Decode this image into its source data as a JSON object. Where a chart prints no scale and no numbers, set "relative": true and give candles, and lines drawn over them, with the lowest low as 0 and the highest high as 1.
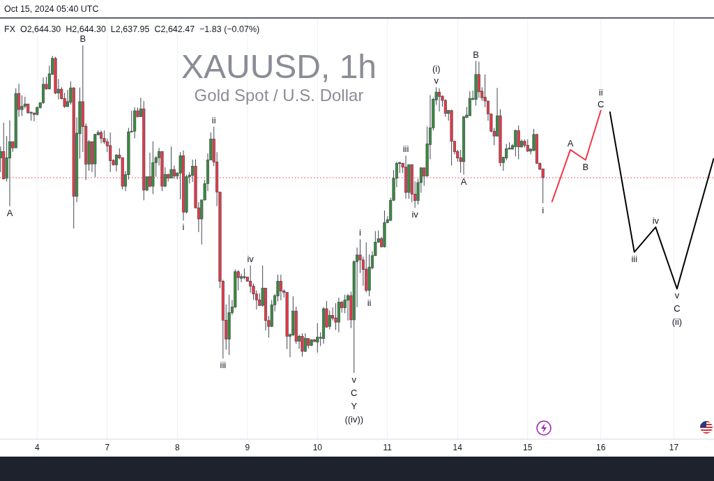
{
  "chart_data": {
    "type": "candlestick",
    "title": "XAUUSD, 1h",
    "subtitle": "Gold Spot / U.S. Dollar",
    "relative": true,
    "categories": [
      null,
      null,
      null,
      null,
      null,
      null,
      null,
      null,
      null,
      null,
      null,
      null,
      "4",
      null,
      null,
      null,
      null,
      null,
      null,
      null,
      null,
      null,
      null,
      null,
      null,
      null,
      null,
      null,
      null,
      null,
      null,
      null,
      null,
      null,
      null,
      "7",
      null,
      null,
      null,
      null,
      null,
      null,
      null,
      null,
      null,
      null,
      null,
      null,
      null,
      null,
      null,
      null,
      null,
      null,
      null,
      null,
      null,
      null,
      "8",
      null,
      null,
      null,
      null,
      null,
      null,
      null,
      null,
      null,
      null,
      null,
      null,
      null,
      null,
      null,
      null,
      null,
      null,
      null,
      null,
      null,
      null,
      "9",
      null,
      null,
      null,
      null,
      null,
      null,
      null,
      null,
      null,
      null,
      null,
      null,
      null,
      null,
      null,
      null,
      null,
      null,
      null,
      null,
      null,
      null,
      "10",
      null,
      null,
      null,
      null,
      null,
      null,
      null,
      null,
      null,
      null,
      null,
      null,
      null,
      null,
      null,
      null,
      null,
      null,
      null,
      null,
      null,
      null,
      "11",
      null,
      null,
      null,
      null,
      null,
      null,
      null,
      null,
      null,
      null,
      null,
      null,
      null,
      null,
      null,
      null,
      null,
      null,
      null,
      null,
      null,
      null,
      "14",
      null,
      null,
      null,
      null,
      null,
      null,
      null,
      null,
      null,
      null,
      null,
      null,
      null,
      null,
      null,
      null,
      null,
      null,
      null,
      null,
      null,
      null,
      "15",
      null,
      null,
      null,
      null,
      null,
      null,
      null,
      null,
      null,
      null,
      null,
      null,
      null,
      null,
      null,
      null,
      null,
      null,
      null,
      null,
      null,
      null,
      null,
      "16",
      null,
      null,
      null,
      null,
      null,
      null,
      null,
      null,
      null,
      null,
      null,
      null,
      null,
      null,
      null,
      null,
      null,
      null,
      null,
      null,
      null,
      null,
      null,
      "17",
      null,
      null,
      null,
      null,
      null,
      null,
      null,
      null,
      null,
      null,
      null,
      null,
      null
    ],
    "ohlc": [
      [
        0.656,
        0.691,
        0.613,
        0.676
      ],
      [
        0.676,
        0.764,
        0.591,
        0.592
      ],
      [
        0.594,
        0.723,
        0.584,
        0.657
      ],
      [
        0.656,
        0.771,
        0.509,
        0.706
      ],
      [
        0.706,
        0.706,
        0.675,
        0.687
      ],
      [
        0.687,
        0.869,
        0.687,
        0.853
      ],
      [
        0.853,
        0.883,
        0.782,
        0.804
      ],
      [
        0.804,
        0.847,
        0.784,
        0.814
      ],
      [
        0.814,
        0.843,
        0.807,
        0.821
      ],
      [
        0.821,
        0.821,
        0.791,
        0.794
      ],
      [
        0.793,
        0.796,
        0.77,
        0.796
      ],
      [
        0.793,
        0.796,
        0.768,
        0.789
      ],
      [
        0.789,
        0.814,
        0.786,
        0.81
      ],
      [
        0.81,
        0.826,
        0.807,
        0.825
      ],
      [
        0.825,
        0.902,
        0.821,
        0.881
      ],
      [
        0.881,
        0.904,
        0.864,
        0.867
      ],
      [
        0.867,
        0.938,
        0.865,
        0.913
      ],
      [
        0.911,
        0.968,
        0.911,
        0.96
      ],
      [
        0.96,
        0.965,
        0.851,
        0.854
      ],
      [
        0.854,
        0.897,
        0.835,
        0.866
      ],
      [
        0.866,
        0.872,
        0.835,
        0.837
      ],
      [
        0.838,
        0.855,
        0.809,
        0.813
      ],
      [
        0.813,
        0.864,
        0.812,
        0.828
      ],
      [
        0.826,
        0.89,
        0.819,
        0.87
      ],
      [
        0.87,
        0.872,
        0.441,
        0.539
      ],
      [
        0.539,
        0.78,
        0.521,
        0.732
      ],
      [
        0.73,
        0.871,
        0.654,
        0.828
      ],
      [
        0.828,
        1.0,
        0.674,
        0.752
      ],
      [
        0.753,
        0.762,
        0.589,
        0.637
      ],
      [
        0.637,
        0.711,
        0.617,
        0.706
      ],
      [
        0.706,
        0.706,
        0.613,
        0.638
      ],
      [
        0.638,
        0.73,
        0.598,
        0.728
      ],
      [
        0.727,
        0.741,
        0.725,
        0.734
      ],
      [
        0.734,
        0.74,
        0.701,
        0.716
      ],
      [
        0.716,
        0.74,
        0.699,
        0.705
      ],
      [
        0.706,
        0.715,
        0.674,
        0.693
      ],
      [
        0.694,
        0.734,
        0.613,
        0.648
      ],
      [
        0.649,
        0.652,
        0.633,
        0.635
      ],
      [
        0.635,
        0.668,
        0.615,
        0.665
      ],
      [
        0.665,
        0.686,
        0.652,
        0.656
      ],
      [
        0.657,
        0.658,
        0.56,
        0.57
      ],
      [
        0.57,
        0.616,
        0.555,
        0.605
      ],
      [
        0.605,
        0.748,
        0.59,
        0.736
      ],
      [
        0.735,
        0.8,
        0.734,
        0.738
      ],
      [
        0.738,
        0.811,
        0.716,
        0.8
      ],
      [
        0.8,
        0.81,
        0.78,
        0.782
      ],
      [
        0.782,
        0.84,
        0.782,
        0.806
      ],
      [
        0.806,
        0.83,
        0.527,
        0.558
      ],
      [
        0.558,
        0.599,
        0.555,
        0.599
      ],
      [
        0.599,
        0.672,
        0.566,
        0.57
      ],
      [
        0.57,
        0.707,
        0.546,
        0.642
      ],
      [
        0.642,
        0.662,
        0.599,
        0.657
      ],
      [
        0.657,
        0.687,
        0.633,
        0.676
      ],
      [
        0.676,
        0.676,
        0.555,
        0.57
      ],
      [
        0.57,
        0.628,
        0.567,
        0.606
      ],
      [
        0.606,
        0.608,
        0.584,
        0.595
      ],
      [
        0.595,
        0.691,
        0.594,
        0.621
      ],
      [
        0.621,
        0.633,
        0.592,
        0.601
      ],
      [
        0.601,
        0.613,
        0.591,
        0.61
      ],
      [
        0.61,
        0.674,
        0.53,
        0.663
      ],
      [
        0.663,
        0.679,
        0.465,
        0.491
      ],
      [
        0.491,
        0.605,
        0.487,
        0.599
      ],
      [
        0.599,
        0.613,
        0.578,
        0.604
      ],
      [
        0.603,
        0.651,
        0.583,
        0.631
      ],
      [
        0.631,
        0.652,
        0.502,
        0.504
      ],
      [
        0.504,
        0.521,
        0.43,
        0.47
      ],
      [
        0.47,
        0.528,
        0.392,
        0.528
      ],
      [
        0.528,
        0.589,
        0.526,
        0.578
      ],
      [
        0.578,
        0.67,
        0.555,
        0.65
      ],
      [
        0.65,
        0.734,
        0.649,
        0.714
      ],
      [
        0.714,
        0.752,
        0.631,
        0.644
      ],
      [
        0.644,
        0.674,
        0.509,
        0.552
      ],
      [
        0.552,
        0.552,
        0.259,
        0.28
      ],
      [
        0.28,
        0.284,
        0.044,
        0.161
      ],
      [
        0.161,
        0.209,
        0.071,
        0.103
      ],
      [
        0.103,
        0.238,
        0.055,
        0.184
      ],
      [
        0.184,
        0.223,
        0.177,
        0.201
      ],
      [
        0.201,
        0.316,
        0.199,
        0.309
      ],
      [
        0.309,
        0.314,
        0.252,
        0.291
      ],
      [
        0.289,
        0.303,
        0.277,
        0.294
      ],
      [
        0.291,
        0.319,
        0.286,
        0.294
      ],
      [
        0.293,
        0.293,
        0.279,
        0.28
      ],
      [
        0.28,
        0.328,
        0.245,
        0.265
      ],
      [
        0.265,
        0.273,
        0.223,
        0.241
      ],
      [
        0.241,
        0.252,
        0.194,
        0.223
      ],
      [
        0.223,
        0.243,
        0.204,
        0.206
      ],
      [
        0.206,
        0.328,
        0.202,
        0.259
      ],
      [
        0.259,
        0.259,
        0.13,
        0.16
      ],
      [
        0.16,
        0.174,
        0.108,
        0.142
      ],
      [
        0.142,
        0.223,
        0.14,
        0.208
      ],
      [
        0.208,
        0.241,
        0.188,
        0.236
      ],
      [
        0.235,
        0.3,
        0.218,
        0.28
      ],
      [
        0.28,
        0.3,
        0.222,
        0.25
      ],
      [
        0.25,
        0.255,
        0.23,
        0.246
      ],
      [
        0.246,
        0.246,
        0.073,
        0.112
      ],
      [
        0.112,
        0.121,
        0.048,
        0.117
      ],
      [
        0.116,
        0.234,
        0.113,
        0.189
      ],
      [
        0.189,
        0.202,
        0.089,
        0.097
      ],
      [
        0.097,
        0.117,
        0.074,
        0.112
      ],
      [
        0.112,
        0.121,
        0.05,
        0.066
      ],
      [
        0.066,
        0.121,
        0.064,
        0.106
      ],
      [
        0.105,
        0.106,
        0.074,
        0.084
      ],
      [
        0.084,
        0.103,
        0.082,
        0.101
      ],
      [
        0.101,
        0.104,
        0.094,
        0.096
      ],
      [
        0.094,
        0.152,
        0.062,
        0.109
      ],
      [
        0.106,
        0.124,
        0.082,
        0.109
      ],
      [
        0.105,
        0.201,
        0.089,
        0.196
      ],
      [
        0.196,
        0.22,
        0.138,
        0.14
      ],
      [
        0.142,
        0.191,
        0.133,
        0.176
      ],
      [
        0.176,
        0.2,
        0.16,
        0.167
      ],
      [
        0.168,
        0.213,
        0.131,
        0.155
      ],
      [
        0.155,
        0.23,
        0.124,
        0.216
      ],
      [
        0.216,
        0.22,
        0.184,
        0.199
      ],
      [
        0.199,
        0.239,
        0.182,
        0.223
      ],
      [
        0.222,
        0.241,
        0.16,
        0.236
      ],
      [
        0.236,
        0.248,
        0.137,
        0.162
      ],
      [
        0.162,
        0.344,
        0,
        0.34
      ],
      [
        0.34,
        0.383,
        0.201,
        0.36
      ],
      [
        0.36,
        0.408,
        0.305,
        0.345
      ],
      [
        0.345,
        0.355,
        0.266,
        0.316
      ],
      [
        0.317,
        0.399,
        0.246,
        0.252
      ],
      [
        0.252,
        0.362,
        0.234,
        0.323
      ],
      [
        0.321,
        0.371,
        0.316,
        0.358
      ],
      [
        0.358,
        0.433,
        0.357,
        0.399
      ],
      [
        0.399,
        0.435,
        0.397,
        0.41
      ],
      [
        0.41,
        0.415,
        0.383,
        0.385
      ],
      [
        0.385,
        0.496,
        0.383,
        0.459
      ],
      [
        0.459,
        0.479,
        0.457,
        0.468
      ],
      [
        0.466,
        0.535,
        0.463,
        0.527
      ],
      [
        0.527,
        0.619,
        0.525,
        0.594
      ],
      [
        0.594,
        0.645,
        0.567,
        0.64
      ],
      [
        0.639,
        0.645,
        0.61,
        0.642
      ],
      [
        0.64,
        0.642,
        0.61,
        0.628
      ],
      [
        0.628,
        0.663,
        0.532,
        0.551
      ],
      [
        0.551,
        0.636,
        0.532,
        0.636
      ],
      [
        0.636,
        0.636,
        0.521,
        0.546
      ],
      [
        0.546,
        0.585,
        0.504,
        0.526
      ],
      [
        0.526,
        0.592,
        0.514,
        0.581
      ],
      [
        0.581,
        0.628,
        0.55,
        0.626
      ],
      [
        0.626,
        0.626,
        0.571,
        0.601
      ],
      [
        0.601,
        0.752,
        0.599,
        0.699
      ],
      [
        0.697,
        0.848,
        0.652,
        0.748
      ],
      [
        0.748,
        0.84,
        0.74,
        0.835
      ],
      [
        0.833,
        0.872,
        0.818,
        0.857
      ],
      [
        0.857,
        0.869,
        0.798,
        0.844
      ],
      [
        0.845,
        0.846,
        0.813,
        0.832
      ],
      [
        0.832,
        0.835,
        0.782,
        0.792
      ],
      [
        0.792,
        0.803,
        0.77,
        0.801
      ],
      [
        0.801,
        0.803,
        0.633,
        0.707
      ],
      [
        0.707,
        0.709,
        0.667,
        0.675
      ],
      [
        0.676,
        0.681,
        0.645,
        0.656
      ],
      [
        0.657,
        0.681,
        0.611,
        0.645
      ],
      [
        0.645,
        0.784,
        0.605,
        0.782
      ],
      [
        0.78,
        0.812,
        0.778,
        0.787
      ],
      [
        0.785,
        0.86,
        0.785,
        0.838
      ],
      [
        0.835,
        0.862,
        0.832,
        0.838
      ],
      [
        0.835,
        0.952,
        0.816,
        0.911
      ],
      [
        0.911,
        0.95,
        0.84,
        0.858
      ],
      [
        0.86,
        0.872,
        0.83,
        0.84
      ],
      [
        0.842,
        0.911,
        0.811,
        0.83
      ],
      [
        0.83,
        0.83,
        0.77,
        0.791
      ],
      [
        0.791,
        0.791,
        0.734,
        0.738
      ],
      [
        0.738,
        0.748,
        0.695,
        0.723
      ],
      [
        0.723,
        0.87,
        0.722,
        0.785
      ],
      [
        0.785,
        0.805,
        0.631,
        0.642
      ],
      [
        0.642,
        0.66,
        0.617,
        0.658
      ],
      [
        0.656,
        0.699,
        0.649,
        0.684
      ],
      [
        0.683,
        0.704,
        0.683,
        0.686
      ],
      [
        0.683,
        0.699,
        0.683,
        0.694
      ],
      [
        0.691,
        0.743,
        0.661,
        0.74
      ],
      [
        0.74,
        0.755,
        0.652,
        0.69
      ],
      [
        0.69,
        0.713,
        0.688,
        0.707
      ],
      [
        0.707,
        0.713,
        0.688,
        0.695
      ],
      [
        0.695,
        0.713,
        0.674,
        0.677
      ],
      [
        0.677,
        0.686,
        0.667,
        0.683
      ],
      [
        0.679,
        0.745,
        0.677,
        0.728
      ],
      [
        0.728,
        0.73,
        0.638,
        0.64
      ],
      [
        0.64,
        0.642,
        0.619,
        0.622
      ],
      [
        0.623,
        0.623,
        0.518,
        0.596
      ],
      null,
      null,
      null,
      null,
      null,
      null,
      null,
      null,
      null,
      null,
      null,
      null,
      null,
      null,
      null,
      null,
      null,
      null,
      null,
      null,
      null,
      null,
      null,
      null,
      null,
      null,
      null,
      null,
      null,
      null,
      null,
      null,
      null,
      null,
      null,
      null,
      null,
      null,
      null,
      null,
      null,
      null,
      null,
      null,
      null,
      null,
      null,
      null,
      null,
      null,
      null,
      null,
      null,
      null,
      null,
      null
    ],
    "color": "#434651",
    "colors": [
      "#388e3c",
      "#f23645",
      "#388e3c",
      "#388e3c",
      "#f23645",
      "#388e3c",
      "#f23645",
      "#388e3c",
      "#388e3c",
      "#f23645",
      "#388e3c",
      "#f23645",
      "#388e3c",
      "#388e3c",
      "#388e3c",
      "#f23645",
      "#388e3c",
      "#388e3c",
      "#f23645",
      "#388e3c",
      "#f23645",
      "#f23645",
      "#388e3c",
      "#388e3c",
      "#f23645",
      "#388e3c",
      "#388e3c",
      "#f23645",
      "#f23645",
      "#388e3c",
      "#f23645",
      "#388e3c",
      "#388e3c",
      "#f23645",
      "#f23645",
      "#f23645",
      "#f23645",
      "#f23645",
      "#388e3c",
      "#f23645",
      "#f23645",
      "#388e3c",
      "#388e3c",
      "#388e3c",
      "#388e3c",
      "#f23645",
      "#388e3c",
      "#f23645",
      "#388e3c",
      "#f23645",
      "#388e3c",
      "#388e3c",
      "#388e3c",
      "#f23645",
      "#388e3c",
      "#f23645",
      "#388e3c",
      "#f23645",
      "#388e3c",
      "#388e3c",
      "#f23645",
      "#388e3c",
      "#388e3c",
      "#388e3c",
      "#f23645",
      "#f23645",
      "#388e3c",
      "#388e3c",
      "#388e3c",
      "#388e3c",
      "#f23645",
      "#f23645",
      "#f23645",
      "#f23645",
      "#f23645",
      "#388e3c",
      "#388e3c",
      "#388e3c",
      "#f23645",
      "#388e3c",
      "#388e3c",
      "#f23645",
      "#f23645",
      "#f23645",
      "#f23645",
      "#f23645",
      "#388e3c",
      "#f23645",
      "#f23645",
      "#388e3c",
      "#388e3c",
      "#388e3c",
      "#f23645",
      "#f23645",
      "#f23645",
      "#388e3c",
      "#388e3c",
      "#f23645",
      "#388e3c",
      "#f23645",
      "#388e3c",
      "#f23645",
      "#388e3c",
      "#f23645",
      "#388e3c",
      "#388e3c",
      "#388e3c",
      "#f23645",
      "#388e3c",
      "#f23645",
      "#f23645",
      "#388e3c",
      "#f23645",
      "#388e3c",
      "#388e3c",
      "#f23645",
      "#388e3c",
      "#388e3c",
      "#f23645",
      "#f23645",
      "#f23645",
      "#388e3c",
      "#388e3c",
      "#388e3c",
      "#388e3c",
      "#f23645",
      "#388e3c",
      "#388e3c",
      "#388e3c",
      "#388e3c",
      "#388e3c",
      "#388e3c",
      "#f23645",
      "#f23645",
      "#388e3c",
      "#f23645",
      "#f23645",
      "#388e3c",
      "#388e3c",
      "#f23645",
      "#388e3c",
      "#388e3c",
      "#388e3c",
      "#388e3c",
      "#f23645",
      "#f23645",
      "#f23645",
      "#388e3c",
      "#f23645",
      "#f23645",
      "#f23645",
      "#f23645",
      "#388e3c",
      "#388e3c",
      "#388e3c",
      "#388e3c",
      "#388e3c",
      "#f23645",
      "#f23645",
      "#f23645",
      "#f23645",
      "#f23645",
      "#f23645",
      "#388e3c",
      "#f23645",
      "#388e3c",
      "#388e3c",
      "#388e3c",
      "#388e3c",
      "#388e3c",
      "#f23645",
      "#388e3c",
      "#f23645",
      "#f23645",
      "#388e3c",
      "#388e3c",
      "#f23645",
      "#f23645",
      "#f23645",
      null,
      null,
      null,
      null,
      null,
      null,
      null,
      null,
      null,
      null,
      null,
      null,
      null,
      null,
      null,
      null,
      null,
      null,
      null,
      null,
      null,
      null,
      null,
      null,
      null,
      null,
      null,
      null,
      null,
      null,
      null,
      null,
      null,
      null,
      null,
      null,
      null,
      null,
      null,
      null,
      null,
      null,
      null,
      null,
      null,
      null,
      null,
      null,
      null,
      null,
      null,
      null,
      null,
      null,
      null,
      null
    ],
    "series": [
      {
        "type": "line",
        "color": "#f23645",
        "values": [
          null,
          null,
          null,
          null,
          null,
          null,
          null,
          null,
          null,
          null,
          null,
          null,
          null,
          null,
          null,
          null,
          null,
          null,
          null,
          null,
          null,
          null,
          null,
          null,
          null,
          null,
          null,
          null,
          null,
          null,
          null,
          null,
          null,
          null,
          null,
          null,
          null,
          null,
          null,
          null,
          null,
          null,
          null,
          null,
          null,
          null,
          null,
          null,
          null,
          null,
          null,
          null,
          null,
          null,
          null,
          null,
          null,
          null,
          null,
          null,
          null,
          null,
          null,
          null,
          null,
          null,
          null,
          null,
          null,
          null,
          null,
          null,
          null,
          null,
          null,
          null,
          null,
          null,
          null,
          null,
          null,
          null,
          null,
          null,
          null,
          null,
          null,
          null,
          null,
          null,
          null,
          null,
          null,
          null,
          null,
          null,
          null,
          null,
          null,
          null,
          null,
          null,
          null,
          null,
          null,
          null,
          null,
          null,
          null,
          null,
          null,
          null,
          null,
          null,
          null,
          null,
          null,
          null,
          null,
          null,
          null,
          null,
          null,
          null,
          null,
          null,
          null,
          null,
          null,
          null,
          null,
          null,
          null,
          null,
          null,
          null,
          null,
          null,
          null,
          null,
          null,
          null,
          null,
          null,
          null,
          null,
          null,
          null,
          null,
          null,
          null,
          null,
          null,
          null,
          null,
          null,
          null,
          null,
          null,
          null,
          null,
          null,
          null,
          null,
          null,
          null,
          null,
          null,
          null,
          null,
          null,
          null,
          null,
          null,
          null,
          null,
          null,
          null,
          null,
          null,
          null,
          0.523,
          null,
          null,
          null,
          null,
          null,
          0.681,
          null,
          null,
          null,
          null,
          0.65,
          null,
          null,
          null,
          null,
          0.801,
          null,
          null,
          null,
          null,
          null,
          null,
          null,
          null,
          null,
          null,
          null,
          null,
          null,
          null,
          null,
          null,
          null,
          null,
          null,
          null,
          null,
          null,
          null,
          null,
          null,
          null,
          null,
          null,
          null,
          null,
          null,
          null,
          null,
          null,
          null,
          null,
          null
        ]
      },
      {
        "type": "line",
        "color": "#000000",
        "values": [
          null,
          null,
          null,
          null,
          null,
          null,
          null,
          null,
          null,
          null,
          null,
          null,
          null,
          null,
          null,
          null,
          null,
          null,
          null,
          null,
          null,
          null,
          null,
          null,
          null,
          null,
          null,
          null,
          null,
          null,
          null,
          null,
          null,
          null,
          null,
          null,
          null,
          null,
          null,
          null,
          null,
          null,
          null,
          null,
          null,
          null,
          null,
          null,
          null,
          null,
          null,
          null,
          null,
          null,
          null,
          null,
          null,
          null,
          null,
          null,
          null,
          null,
          null,
          null,
          null,
          null,
          null,
          null,
          null,
          null,
          null,
          null,
          null,
          null,
          null,
          null,
          null,
          null,
          null,
          null,
          null,
          null,
          null,
          null,
          null,
          null,
          null,
          null,
          null,
          null,
          null,
          null,
          null,
          null,
          null,
          null,
          null,
          null,
          null,
          null,
          null,
          null,
          null,
          null,
          null,
          null,
          null,
          null,
          null,
          null,
          null,
          null,
          null,
          null,
          null,
          null,
          null,
          null,
          null,
          null,
          null,
          null,
          null,
          null,
          null,
          null,
          null,
          null,
          null,
          null,
          null,
          null,
          null,
          null,
          null,
          null,
          null,
          null,
          null,
          null,
          null,
          null,
          null,
          null,
          null,
          null,
          null,
          null,
          null,
          null,
          null,
          null,
          null,
          null,
          null,
          null,
          null,
          null,
          null,
          null,
          null,
          null,
          null,
          null,
          null,
          null,
          null,
          null,
          null,
          null,
          null,
          null,
          null,
          null,
          null,
          null,
          null,
          null,
          null,
          null,
          null,
          null,
          null,
          null,
          null,
          null,
          null,
          null,
          null,
          null,
          null,
          null,
          null,
          null,
          null,
          null,
          null,
          null,
          null,
          null,
          0.796,
          null,
          null,
          null,
          null,
          null,
          null,
          null,
          0.369,
          null,
          null,
          null,
          null,
          null,
          null,
          0.445,
          null,
          null,
          null,
          null,
          null,
          null,
          0.257,
          null,
          null,
          null,
          null,
          null,
          null,
          null,
          null,
          null,
          null,
          null,
          0.653
        ]
      }
    ],
    "grid": "x",
    "ref_lines": [
      {
        "axis": "y",
        "value": 0.596,
        "color": "#f23645",
        "line_style": "dotted"
      }
    ],
    "annotations": [
      "Oct 15, 2024 05:40 UTC",
      "FX  O2,644.30  H2,644.30  L2,637.95  C2,642.47  −1.83 (−0.07%)",
      {
        "text": "A",
        "y": 0.509
      },
      {
        "text": "B",
        "y": 1
      },
      {
        "text": "i",
        "y": 0.465
      },
      {
        "text": "ii",
        "y": 0.752
      },
      {
        "text": "iii",
        "y": 0.044
      },
      {
        "text": "iv",
        "y": 0.328
      },
      {
        "text": "v",
        "y": 0
      },
      "C",
      "Y",
      "((iv))",
      {
        "text": "i",
        "y": 0.408
      },
      {
        "text": "ii",
        "y": 0.234
      },
      {
        "text": "iii",
        "y": 0.663
      },
      {
        "text": "iv",
        "y": 0.504
      },
      {
        "text": "v",
        "y": 0.872
      },
      "(i)",
      {
        "text": "A",
        "y": 0.605
      },
      {
        "text": "B",
        "y": 0.952
      },
      {
        "text": "i",
        "y": 0.518
      },
      {
        "text": "A",
        "y": 0.681
      },
      {
        "text": "B",
        "y": 0.65
      },
      {
        "text": "C",
        "y": 0.801
      },
      "ii",
      {
        "text": "iii",
        "y": 0.369
      },
      {
        "text": "iv",
        "y": 0.445
      },
      {
        "text": "v",
        "y": 0.257
      },
      "C",
      "(ii)"
    ]
  }
}
